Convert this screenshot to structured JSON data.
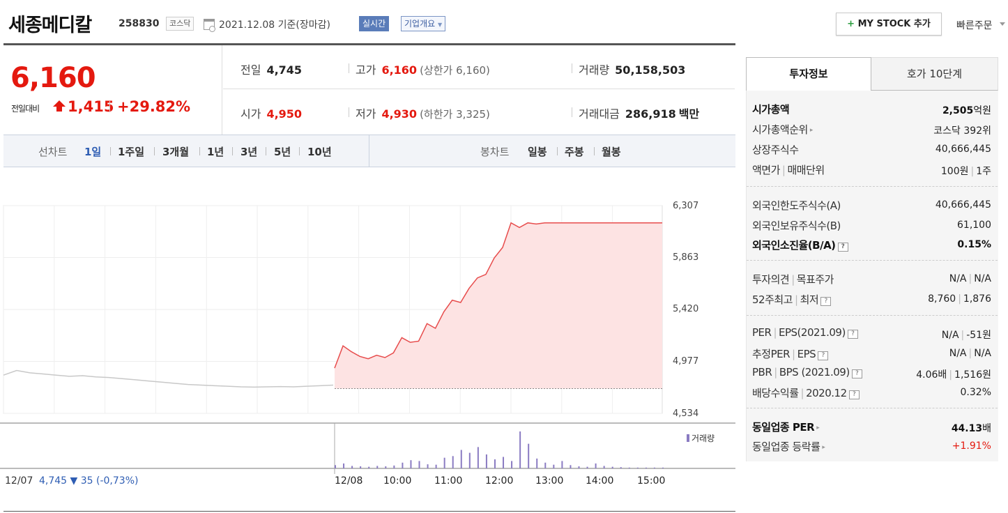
{
  "header": {
    "company_name": "세종메디칼",
    "company_code": "258830",
    "market": "코스닥",
    "base_date": "2021.12.08  기준(장마감)",
    "realtime": "실시간",
    "corp_info": "기업개요",
    "mystock_plus": "+",
    "mystock": " MY STOCK 추가",
    "quick_order": "빠른주문"
  },
  "price": {
    "current": "6,160",
    "change_label": "전일대비",
    "change_value": "1,415",
    "change_pct": "+29.82%"
  },
  "stats": {
    "prev_label": "전일",
    "prev_value": "4,745",
    "high_label": "고가",
    "high_value": "6,160",
    "upper_limit": "(상한가 6,160)",
    "volume_label": "거래량",
    "volume_value": "50,158,503",
    "open_label": "시가",
    "open_value": "4,950",
    "low_label": "저가",
    "low_value": "4,930",
    "lower_limit": "(하한가 3,325)",
    "amount_label": "거래대금",
    "amount_value": "286,918",
    "amount_unit": "백만"
  },
  "tabs": {
    "line_label": "선차트",
    "line_items": [
      "1일",
      "1주일",
      "3개월",
      "1년",
      "3년",
      "5년",
      "10년"
    ],
    "candle_label": "봉차트",
    "candle_items": [
      "일봉",
      "주봉",
      "월봉"
    ]
  },
  "chart_data": {
    "type": "area",
    "y_ticks": [
      "6,307",
      "5,863",
      "5,420",
      "4,977",
      "4,534"
    ],
    "ylim": [
      4534,
      6307
    ],
    "x_labels": [
      "12/08",
      "10:00",
      "11:00",
      "12:00",
      "13:00",
      "14:00",
      "15:00"
    ],
    "first_label": "12/07",
    "prev_close_text": "4,745 ▼ 35 (-0,73%)",
    "volume_legend": "거래량",
    "baseline": 4745,
    "previous_day_series": [
      4860,
      4900,
      4880,
      4870,
      4860,
      4850,
      4855,
      4845,
      4840,
      4830,
      4820,
      4810,
      4800,
      4790,
      4780,
      4775,
      4770,
      4765,
      4760,
      4758,
      4760,
      4762,
      4760,
      4765,
      4770,
      4775
    ],
    "today_series": [
      4920,
      5110,
      5060,
      5020,
      5000,
      5030,
      5010,
      5050,
      5180,
      5140,
      5150,
      5300,
      5260,
      5400,
      5500,
      5480,
      5600,
      5690,
      5720,
      5860,
      5950,
      6160,
      6120,
      6160,
      6150,
      6160,
      6160,
      6160,
      6160,
      6160,
      6160,
      6160,
      6160,
      6160,
      6160,
      6160,
      6160,
      6160,
      6160,
      6160
    ],
    "today_volume": [
      8,
      12,
      6,
      5,
      4,
      6,
      5,
      7,
      14,
      20,
      18,
      10,
      9,
      26,
      30,
      45,
      38,
      52,
      34,
      22,
      28,
      18,
      90,
      60,
      24,
      14,
      9,
      18,
      8,
      5,
      4,
      12,
      6,
      4,
      3,
      2,
      2,
      2,
      2,
      2
    ]
  },
  "right": {
    "tab_active": "투자정보",
    "tab_other": "호가 10단계",
    "group1": [
      {
        "label": "시가총액",
        "value": "2,505",
        "unit": "억원"
      },
      {
        "label": "시가총액순위",
        "value": "코스닥 392위"
      },
      {
        "label": "상장주식수",
        "value": "40,666,445"
      },
      {
        "label": "액면가",
        "label2": "매매단위",
        "value": "100원",
        "value2": "1주"
      }
    ],
    "group2": [
      {
        "label": "외국인한도주식수(A)",
        "value": "40,666,445"
      },
      {
        "label": "외국인보유주식수(B)",
        "value": "61,100"
      },
      {
        "label": "외국인소진율(B/A)",
        "value": "0.15%"
      }
    ],
    "group3": [
      {
        "label": "투자의견",
        "label2": "목표주가",
        "value": "N/A",
        "value2": "N/A"
      },
      {
        "label": "52주최고",
        "label2": "최저",
        "value": "8,760",
        "value2": "1,876"
      }
    ],
    "group4": [
      {
        "label": "PER",
        "label2": "EPS(2021.09)",
        "value": "N/A",
        "value2": "-51원"
      },
      {
        "label": "추정PER",
        "label2": "EPS",
        "value": "N/A",
        "value2": "N/A"
      },
      {
        "label": "PBR",
        "label2": "BPS (2021.09)",
        "value": "4.06배",
        "value2": "1,516원"
      },
      {
        "label": "배당수익률",
        "label2": "2020.12",
        "value": "0.32%"
      }
    ],
    "group5": [
      {
        "label": "동일업종 PER",
        "value": "44.13",
        "unit": "배"
      },
      {
        "label": "동일업종 등락률",
        "value": "+1.91%"
      }
    ],
    "help_glyph": "?",
    "caret_glyph": "▸"
  },
  "colors": {
    "up": "#e4190f",
    "accent": "#2e5db3",
    "volume": "#8a7bc2"
  }
}
